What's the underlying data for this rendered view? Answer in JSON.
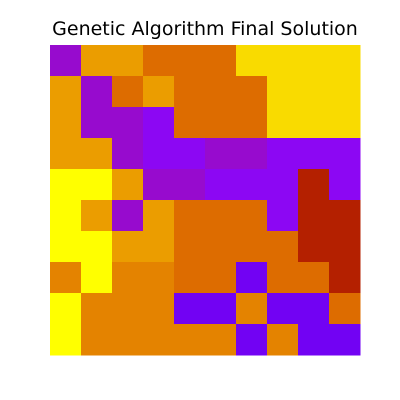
{
  "chart_data": {
    "type": "heatmap",
    "title": "Genetic Algorithm Final Solution",
    "xlabel": "",
    "ylabel": "",
    "axes_visible": false,
    "grid": false,
    "colormap": "gnuplot",
    "rows": 10,
    "cols": 10,
    "values": [
      [
        0.35,
        0.85,
        0.85,
        0.75,
        0.75,
        0.75,
        0.95,
        0.95,
        0.95,
        0.95
      ],
      [
        0.85,
        0.35,
        0.75,
        0.85,
        0.75,
        0.75,
        0.75,
        0.95,
        0.95,
        0.95
      ],
      [
        0.85,
        0.35,
        0.35,
        0.3,
        0.75,
        0.75,
        0.75,
        0.95,
        0.95,
        0.95
      ],
      [
        0.85,
        0.85,
        0.35,
        0.3,
        0.3,
        0.35,
        0.35,
        0.3,
        0.3,
        0.3
      ],
      [
        1.0,
        1.0,
        0.85,
        0.35,
        0.35,
        0.3,
        0.3,
        0.3,
        0.5,
        0.3
      ],
      [
        1.0,
        0.85,
        0.35,
        0.85,
        0.75,
        0.75,
        0.75,
        0.3,
        0.5,
        0.5
      ],
      [
        1.0,
        1.0,
        0.85,
        0.85,
        0.75,
        0.75,
        0.75,
        0.75,
        0.5,
        0.5
      ],
      [
        0.8,
        1.0,
        0.8,
        0.8,
        0.75,
        0.75,
        0.2,
        0.75,
        0.75,
        0.5
      ],
      [
        1.0,
        0.8,
        0.8,
        0.8,
        0.2,
        0.2,
        0.8,
        0.2,
        0.2,
        0.75
      ],
      [
        1.0,
        0.8,
        0.8,
        0.8,
        0.8,
        0.8,
        0.2,
        0.8,
        0.2,
        0.2
      ]
    ]
  }
}
